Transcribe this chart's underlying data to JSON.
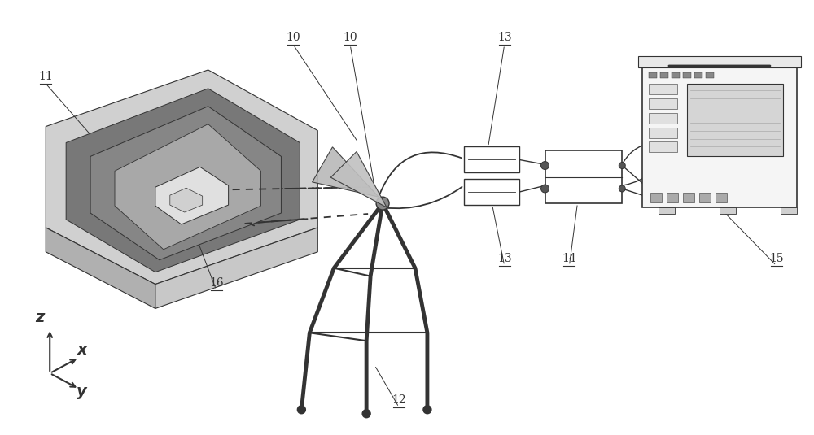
{
  "bg_color": "#ffffff",
  "lc": "#333333",
  "slab_base_face": "#d8d8d8",
  "slab_top_face": "#c0c0c0",
  "slab_dark_layer": "#888888",
  "slab_darker": "#6a6a6a",
  "slab_side_front": "#b8b8b8",
  "slab_side_right": "#d0d0d0",
  "antenna_patch": "#e0e0e0",
  "horn_fill": "#c0c0c0",
  "box_fill": "#ffffff",
  "analyzer_fill": "#f0f0f0",
  "screen_fill": "#d8d8d8",
  "labels": [
    "10",
    "10",
    "11",
    "12",
    "13",
    "13",
    "14",
    "15",
    "16"
  ]
}
